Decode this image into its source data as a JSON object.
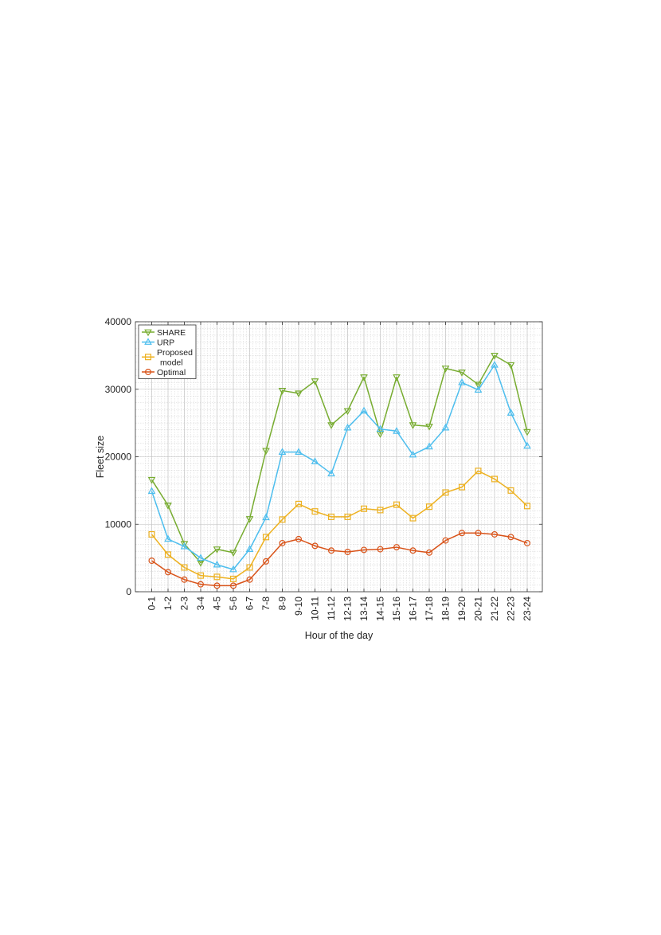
{
  "chart_data": {
    "type": "line",
    "xlabel": "Hour of the day",
    "ylabel": "Fleet size",
    "ylim": [
      0,
      40000
    ],
    "yticks": [
      0,
      10000,
      20000,
      30000,
      40000
    ],
    "grid": true,
    "minor_grid": true,
    "legend_position": "top-left",
    "categories": [
      "0-1",
      "1-2",
      "2-3",
      "3-4",
      "4-5",
      "5-6",
      "6-7",
      "7-8",
      "8-9",
      "9-10",
      "10-11",
      "11-12",
      "12-13",
      "13-14",
      "14-15",
      "15-16",
      "16-17",
      "17-18",
      "18-19",
      "19-20",
      "20-21",
      "21-22",
      "22-23",
      "23-24"
    ],
    "series": [
      {
        "name": "SHARE",
        "color": "#77ac30",
        "marker": "triangle-down",
        "values": [
          16600,
          12800,
          7100,
          4300,
          6300,
          5800,
          10800,
          20900,
          29800,
          29400,
          31200,
          24700,
          26800,
          31800,
          23400,
          31800,
          24700,
          24500,
          33100,
          32500,
          30700,
          35000,
          33600,
          23700
        ]
      },
      {
        "name": "URP",
        "color": "#4dbeee",
        "marker": "triangle-up",
        "values": [
          14900,
          7800,
          6700,
          5000,
          4000,
          3300,
          6300,
          11000,
          20700,
          20700,
          19300,
          17500,
          24300,
          26800,
          24100,
          23800,
          20300,
          21500,
          24300,
          31000,
          29900,
          33600,
          26500,
          21600
        ]
      },
      {
        "name": "Proposed model",
        "legend_lines": [
          "Proposed",
          "model"
        ],
        "color": "#edb120",
        "marker": "square",
        "values": [
          8500,
          5500,
          3600,
          2400,
          2200,
          1900,
          3600,
          8100,
          10700,
          13000,
          11900,
          11100,
          11100,
          12300,
          12100,
          12900,
          10900,
          12600,
          14700,
          15500,
          17900,
          16700,
          15000,
          12700
        ]
      },
      {
        "name": "Optimal",
        "color": "#d95319",
        "marker": "circle",
        "values": [
          4600,
          2900,
          1800,
          1100,
          900,
          900,
          1800,
          4500,
          7200,
          7800,
          6800,
          6100,
          5900,
          6200,
          6300,
          6600,
          6100,
          5800,
          7600,
          8700,
          8700,
          8500,
          8100,
          7200
        ]
      }
    ]
  }
}
